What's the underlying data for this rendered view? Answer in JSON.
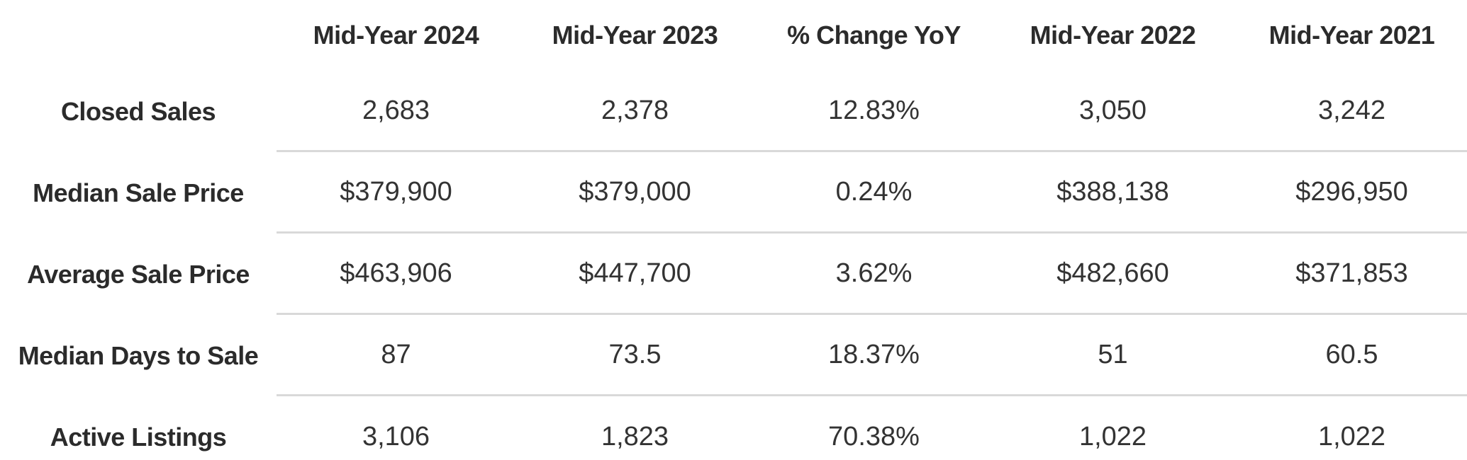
{
  "table": {
    "columns": [
      "",
      "Mid-Year 2024",
      "Mid-Year 2023",
      "% Change YoY",
      "Mid-Year 2022",
      "Mid-Year 2021"
    ],
    "rows": [
      {
        "label": "Closed Sales",
        "values": [
          "2,683",
          "2,378",
          "12.83%",
          "3,050",
          "3,242"
        ]
      },
      {
        "label": "Median Sale Price",
        "values": [
          "$379,900",
          "$379,000",
          "0.24%",
          "$388,138",
          "$296,950"
        ]
      },
      {
        "label": "Average Sale Price",
        "values": [
          "$463,906",
          "$447,700",
          "3.62%",
          "$482,660",
          "$371,853"
        ]
      },
      {
        "label": "Median Days to Sale",
        "values": [
          "87",
          "73.5",
          "18.37%",
          "51",
          "60.5"
        ]
      },
      {
        "label": "Active Listings",
        "values": [
          "3,106",
          "1,823",
          "70.38%",
          "1,022",
          "1,022"
        ]
      }
    ]
  },
  "chart_data": {
    "type": "table",
    "title": "",
    "columns": [
      "Mid-Year 2024",
      "Mid-Year 2023",
      "% Change YoY",
      "Mid-Year 2022",
      "Mid-Year 2021"
    ],
    "rows": [
      {
        "metric": "Closed Sales",
        "mid_year_2024": 2683,
        "mid_year_2023": 2378,
        "pct_change_yoy": "12.83%",
        "mid_year_2022": 3050,
        "mid_year_2021": 3242
      },
      {
        "metric": "Median Sale Price",
        "mid_year_2024": 379900,
        "mid_year_2023": 379000,
        "pct_change_yoy": "0.24%",
        "mid_year_2022": 388138,
        "mid_year_2021": 296950
      },
      {
        "metric": "Average Sale Price",
        "mid_year_2024": 463906,
        "mid_year_2023": 447700,
        "pct_change_yoy": "3.62%",
        "mid_year_2022": 482660,
        "mid_year_2021": 371853
      },
      {
        "metric": "Median Days to Sale",
        "mid_year_2024": 87,
        "mid_year_2023": 73.5,
        "pct_change_yoy": "18.37%",
        "mid_year_2022": 51,
        "mid_year_2021": 60.5
      },
      {
        "metric": "Active Listings",
        "mid_year_2024": 3106,
        "mid_year_2023": 1823,
        "pct_change_yoy": "70.38%",
        "mid_year_2022": 1022,
        "mid_year_2021": 1022
      }
    ],
    "layout": {
      "grid": "horizontal-dividers-only",
      "dividers_start_after_label_column": true
    }
  },
  "colors": {
    "background": "#ffffff",
    "header_text": "#2b2b2b",
    "value_text": "#333333",
    "divider": "#d9d9d9"
  }
}
